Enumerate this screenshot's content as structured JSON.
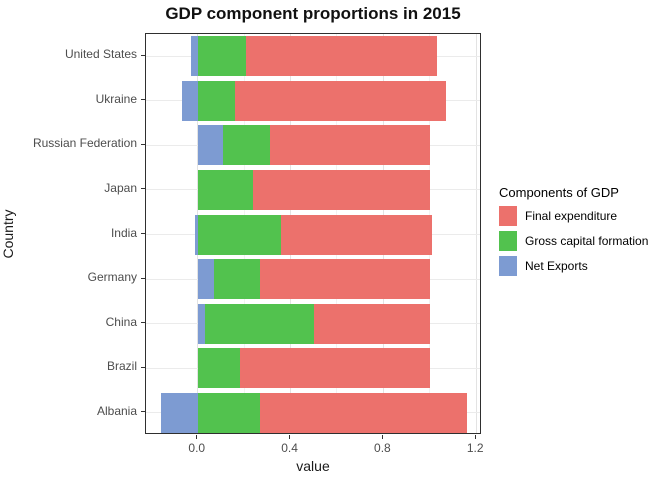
{
  "title": "GDP component proportions in 2015",
  "axes": {
    "x_label": "value",
    "y_label": "Country",
    "x_tick_labels": [
      "0.0",
      "0.4",
      "0.8",
      "1.2"
    ],
    "x_tick_values": [
      0.0,
      0.4,
      0.8,
      1.2
    ],
    "x_minor_values": [
      0.2,
      0.6,
      1.0
    ]
  },
  "legend": {
    "title": "Components of GDP",
    "items": [
      {
        "label": "Final expenditure",
        "color": "#EC716C"
      },
      {
        "label": "Gross capital formation",
        "color": "#52C24E"
      },
      {
        "label": "Net Exports",
        "color": "#7D9BD2"
      }
    ]
  },
  "colors": {
    "final_expenditure": "#EC716C",
    "gross_capital_formation": "#52C24E",
    "net_exports": "#7D9BD2",
    "grid_major": "#e3e3e3",
    "grid_minor": "#f2f2f2",
    "panel_border": "#2f2f2f",
    "tick_text": "#4d4d4d"
  },
  "chart_data": {
    "type": "bar",
    "orientation": "horizontal",
    "stacked": true,
    "title": "GDP component proportions in 2015",
    "xlabel": "value",
    "ylabel": "Country",
    "xlim": [
      -0.223,
      1.225
    ],
    "grid": true,
    "legend_position": "right",
    "categories": [
      "United States",
      "Ukraine",
      "Russian Federation",
      "Japan",
      "India",
      "Germany",
      "China",
      "Brazil",
      "Albania"
    ],
    "series": [
      {
        "name": "Final expenditure",
        "values": [
          0.82,
          0.91,
          0.69,
          0.76,
          0.65,
          0.73,
          0.5,
          0.82,
          0.89
        ]
      },
      {
        "name": "Gross capital formation",
        "values": [
          0.21,
          0.16,
          0.2,
          0.24,
          0.36,
          0.2,
          0.47,
          0.18,
          0.27
        ]
      },
      {
        "name": "Net Exports",
        "values": [
          -0.03,
          -0.07,
          0.11,
          0.0,
          -0.01,
          0.07,
          0.03,
          0.0,
          -0.16
        ]
      }
    ]
  }
}
